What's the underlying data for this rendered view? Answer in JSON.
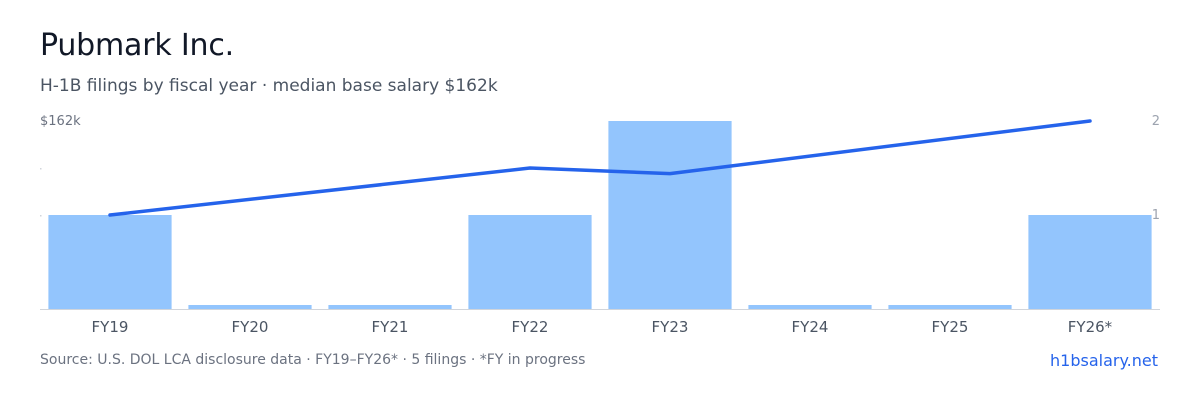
{
  "header": {
    "title": "Pubmark Inc.",
    "subtitle": "H-1B filings by fiscal year · median base salary $162k"
  },
  "footer": {
    "source": "Source: U.S. DOL LCA disclosure data · FY19–FY26* · 5 filings · *FY in progress",
    "link": "h1bsalary.net"
  },
  "colors": {
    "bar": "#93c5fd",
    "line": "#2563eb",
    "axis": "#d1d5db"
  },
  "chart_data": {
    "type": "bar",
    "title": "Pubmark Inc.",
    "categories": [
      "FY19",
      "FY20",
      "FY21",
      "FY22",
      "FY23",
      "FY24",
      "FY25",
      "FY26*"
    ],
    "series": [
      {
        "type": "bar",
        "axis": "right",
        "values": [
          1,
          0,
          0,
          1,
          2,
          0,
          0,
          1
        ]
      },
      {
        "type": "line",
        "axis": "left",
        "values": [
          0.5,
          null,
          null,
          0.75,
          0.72,
          null,
          null,
          1.0
        ]
      }
    ],
    "y_left": {
      "tick_labels": [
        "$162k"
      ],
      "range": [
        0,
        1
      ]
    },
    "y_right": {
      "tick_labels": [
        "1",
        "2"
      ],
      "range": [
        0,
        2
      ]
    },
    "grid": false,
    "legend": "none"
  }
}
